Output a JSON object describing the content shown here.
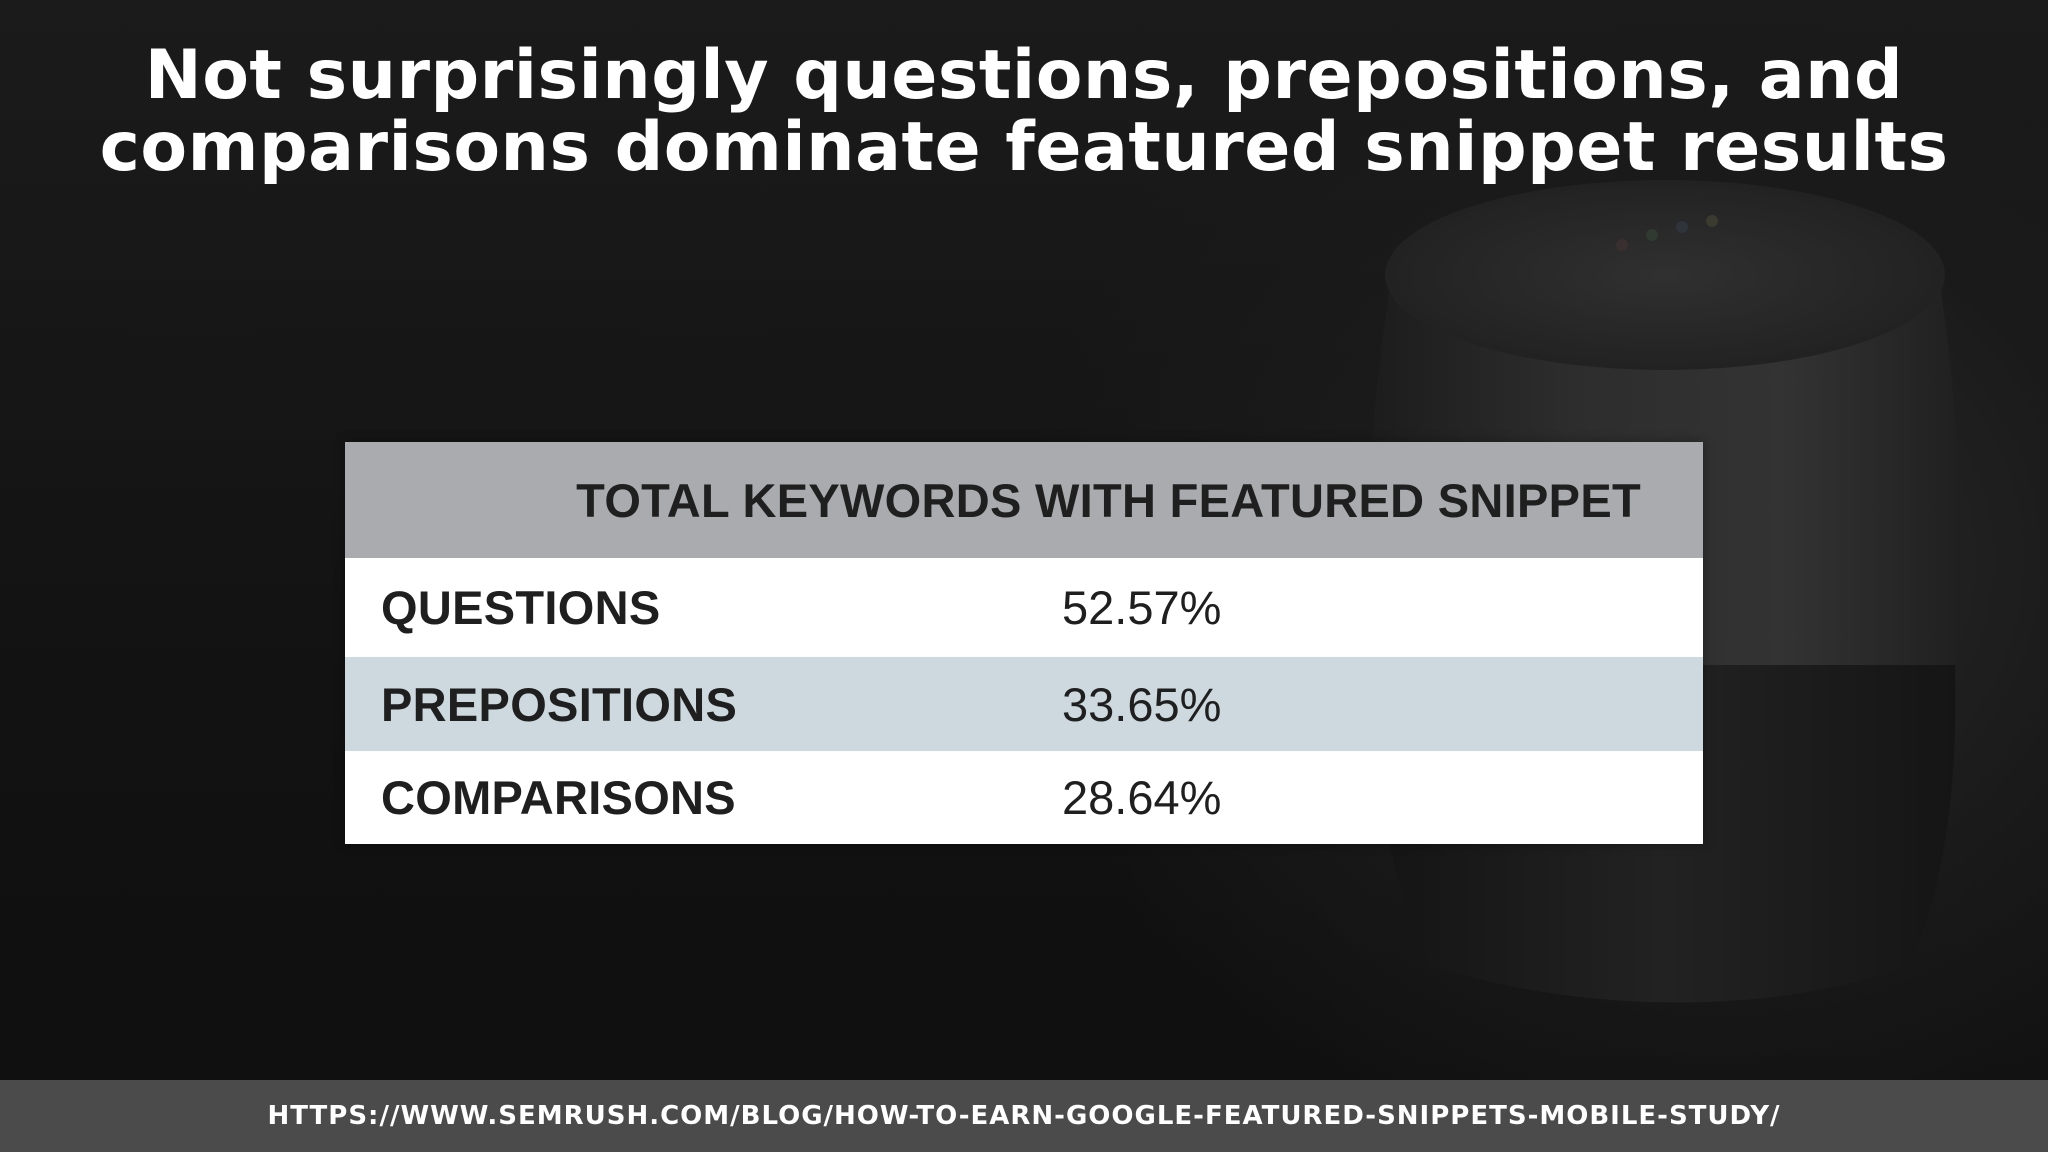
{
  "slide": {
    "title_line_1": "Not surprisingly questions, prepositions, and",
    "title_line_2": "comparisons dominate featured snippet results"
  },
  "table": {
    "header": "TOTAL KEYWORDS WITH FEATURED SNIPPET",
    "rows": [
      {
        "label": "QUESTIONS",
        "value": "52.57%"
      },
      {
        "label": "PREPOSITIONS",
        "value": "33.65%"
      },
      {
        "label": "COMPARISONS",
        "value": "28.64%"
      }
    ]
  },
  "footer": {
    "url": "HTTPS://WWW.SEMRUSH.COM/BLOG/HOW-TO-EARN-GOOGLE-FEATURED-SNIPPETS-MOBILE-STUDY/"
  },
  "colors": {
    "background": "#121212",
    "header_row": "#a9abae",
    "alt_row": "#cdd9de",
    "footer_bar": "#4b4b4b"
  },
  "icons": {
    "background_image": "smart-speaker-image"
  }
}
